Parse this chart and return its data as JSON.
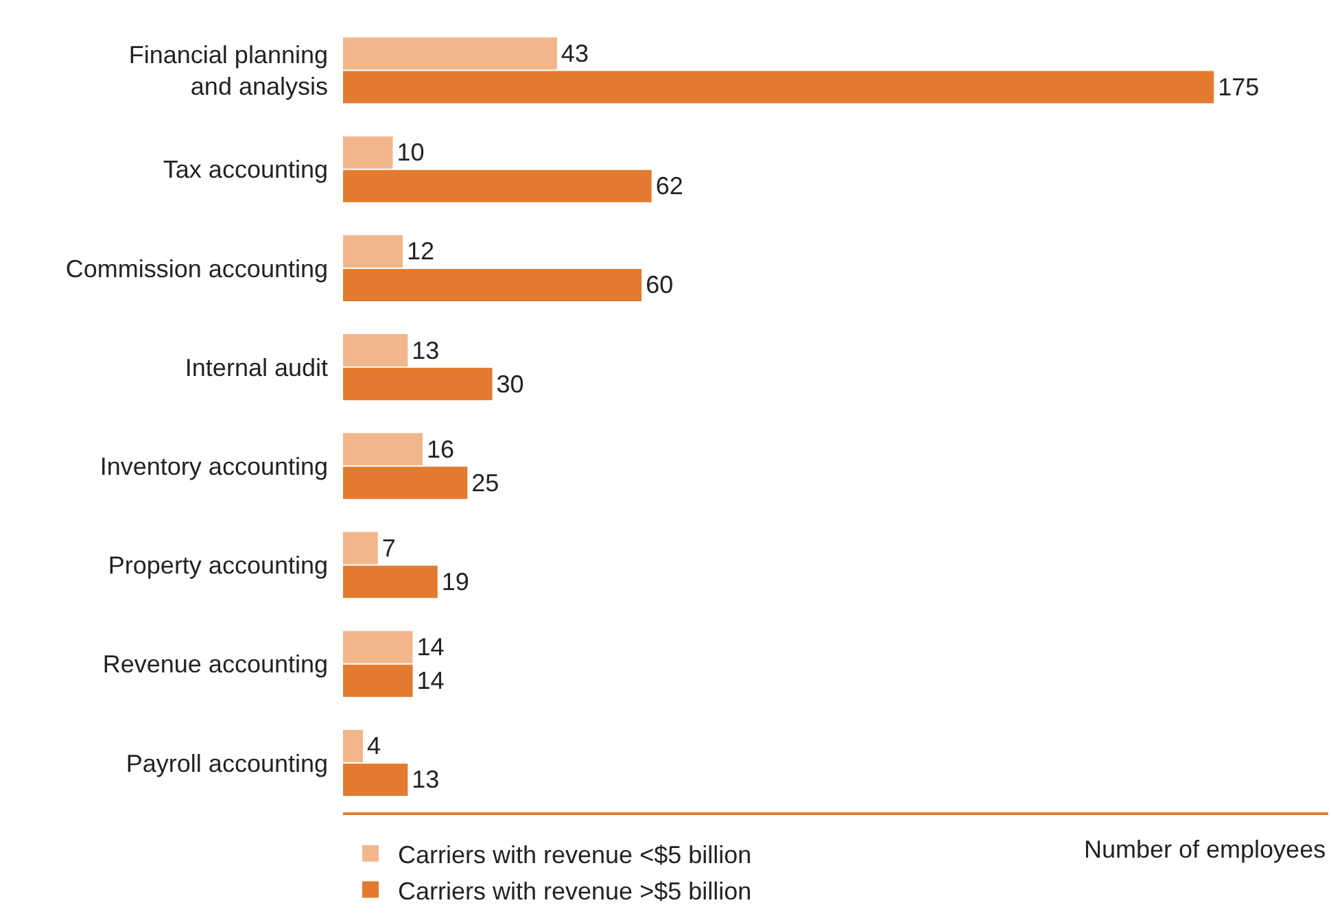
{
  "chart_data": {
    "type": "bar",
    "orientation": "horizontal",
    "xlabel": "Number of employees",
    "categories": [
      "Financial planning\nand analysis",
      "Tax accounting",
      "Commission accounting",
      "Internal audit",
      "Inventory accounting",
      "Property accounting",
      "Revenue accounting",
      "Payroll accounting"
    ],
    "series": [
      {
        "name": "Carriers with revenue <$5 billion",
        "color": "#f2b68c",
        "values": [
          43,
          10,
          12,
          13,
          16,
          7,
          14,
          4
        ]
      },
      {
        "name": "Carriers with revenue >$5 billion",
        "color": "#e27b2f",
        "values": [
          175,
          62,
          60,
          30,
          25,
          19,
          14,
          13
        ]
      }
    ],
    "xlim": [
      0,
      198
    ],
    "tick_labels": "y",
    "data_labels": true,
    "legend": "bottom left"
  }
}
